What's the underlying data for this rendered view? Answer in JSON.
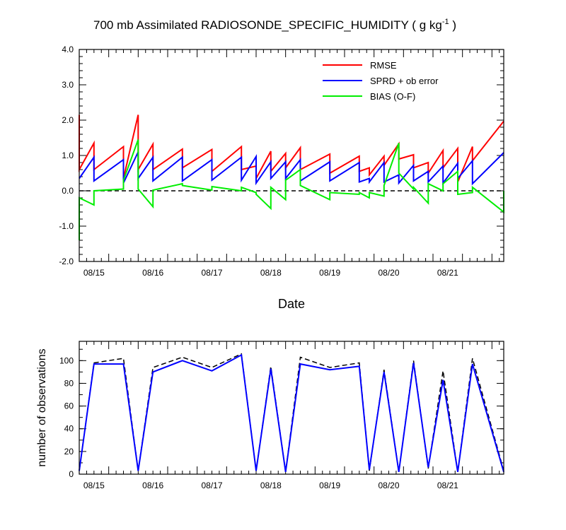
{
  "figure": {
    "title_main": "700 mb Assimilated RADIOSONDE_SPECIFIC_HUMIDITY ( g kg",
    "title_sup": "-1",
    "title_end": " )"
  },
  "chart_data": [
    {
      "type": "line",
      "xlabel": "Date",
      "ylabel": "",
      "ylim": [
        -2.0,
        4.0
      ],
      "xlim": [
        0.0,
        7.2
      ],
      "yticks": [
        "-2.0",
        "-1.0",
        "0.0",
        "1.0",
        "2.0",
        "3.0",
        "4.0"
      ],
      "xtick_positions": [
        0.25,
        1.25,
        2.25,
        3.25,
        4.25,
        5.25,
        6.25
      ],
      "xticks": [
        "08/15",
        "08/16",
        "08/17",
        "08/18",
        "08/19",
        "08/20",
        "08/21"
      ],
      "legend_position": "top-right",
      "reference_line": {
        "y": 0.0,
        "style": "dashed"
      },
      "series": [
        {
          "name": "RMSE",
          "color": "#ff0000",
          "x": [
            0.0,
            0.0,
            0.25,
            0.25,
            0.75,
            0.75,
            1.0,
            1.0,
            1.25,
            1.25,
            1.75,
            1.75,
            2.25,
            2.25,
            2.75,
            2.75,
            3.0,
            3.0,
            3.25,
            3.25,
            3.5,
            3.5,
            3.75,
            3.75,
            4.25,
            4.25,
            4.75,
            4.75,
            4.92,
            4.92,
            5.17,
            5.17,
            5.42,
            5.42,
            5.67,
            5.67,
            5.92,
            5.92,
            6.17,
            6.17,
            6.42,
            6.42,
            6.67,
            6.67,
            7.2
          ],
          "y": [
            2.15,
            0.6,
            1.35,
            0.6,
            1.25,
            0.35,
            2.15,
            0.6,
            1.32,
            0.6,
            1.18,
            0.65,
            1.17,
            0.55,
            1.25,
            0.6,
            0.7,
            0.35,
            1.12,
            0.55,
            1.06,
            0.65,
            1.22,
            0.6,
            1.04,
            0.5,
            0.98,
            0.55,
            0.65,
            0.45,
            0.98,
            0.72,
            1.33,
            0.9,
            1.02,
            0.65,
            0.8,
            0.5,
            1.14,
            0.65,
            1.2,
            0.25,
            1.25,
            0.85,
            1.97
          ]
        },
        {
          "name": "SPRD + ob error",
          "color": "#0000ff",
          "x": [
            0.0,
            0.25,
            0.25,
            0.75,
            0.75,
            1.0,
            1.0,
            1.25,
            1.25,
            1.75,
            1.75,
            2.25,
            2.25,
            2.75,
            2.75,
            3.0,
            3.0,
            3.25,
            3.25,
            3.5,
            3.5,
            3.75,
            3.75,
            4.25,
            4.25,
            4.75,
            4.75,
            4.92,
            4.92,
            5.17,
            5.17,
            5.42,
            5.42,
            5.67,
            5.67,
            5.92,
            5.92,
            6.17,
            6.17,
            6.42,
            6.42,
            6.67,
            6.67,
            7.2
          ],
          "y": [
            0.35,
            0.95,
            0.28,
            0.88,
            0.22,
            1.1,
            0.35,
            0.95,
            0.28,
            0.95,
            0.28,
            0.88,
            0.3,
            0.95,
            0.3,
            0.97,
            0.22,
            0.82,
            0.35,
            0.82,
            0.35,
            0.88,
            0.28,
            0.82,
            0.28,
            0.8,
            0.25,
            0.35,
            0.25,
            0.8,
            0.25,
            0.45,
            0.22,
            0.72,
            0.28,
            0.55,
            0.25,
            0.7,
            0.22,
            0.78,
            0.35,
            0.85,
            0.2,
            1.08
          ]
        },
        {
          "name": "BIAS (O-F)",
          "color": "#00ee00",
          "x": [
            0.0,
            0.0,
            0.25,
            0.25,
            0.75,
            0.75,
            1.0,
            1.0,
            1.25,
            1.25,
            1.75,
            1.75,
            2.25,
            2.25,
            2.75,
            2.75,
            3.0,
            3.0,
            3.25,
            3.25,
            3.5,
            3.5,
            3.75,
            3.75,
            4.25,
            4.25,
            4.75,
            4.75,
            4.92,
            4.92,
            5.17,
            5.17,
            5.42,
            5.42,
            5.67,
            5.67,
            5.92,
            5.92,
            6.17,
            6.17,
            6.42,
            6.42,
            6.67,
            6.67,
            7.2,
            7.2
          ],
          "y": [
            -1.4,
            -0.2,
            -0.4,
            0.0,
            0.05,
            0.3,
            1.45,
            0.05,
            -0.45,
            0.02,
            0.2,
            0.15,
            0.02,
            0.12,
            0.0,
            0.1,
            -0.05,
            -0.1,
            -0.5,
            0.1,
            -0.25,
            0.3,
            0.6,
            0.15,
            -0.25,
            -0.05,
            -0.1,
            -0.05,
            -0.2,
            -0.05,
            -0.15,
            0.15,
            1.35,
            0.5,
            0.05,
            0.1,
            -0.35,
            0.2,
            0.0,
            0.2,
            0.55,
            -0.1,
            -0.05,
            0.1,
            -0.6,
            0.0
          ]
        }
      ]
    },
    {
      "type": "line",
      "xlabel": "",
      "ylabel": "number of observations",
      "ylim": [
        0,
        117
      ],
      "xlim": [
        0.0,
        7.2
      ],
      "yticks": [
        "0",
        "20",
        "40",
        "60",
        "80",
        "100"
      ],
      "xtick_positions": [
        0.25,
        1.25,
        2.25,
        3.25,
        4.25,
        5.25,
        6.25
      ],
      "xticks": [
        "08/15",
        "08/16",
        "08/17",
        "08/18",
        "08/19",
        "08/20",
        "08/21"
      ],
      "series": [
        {
          "style": "dashed",
          "color": "#000000",
          "x": [
            0.0,
            0.25,
            0.75,
            1.0,
            1.25,
            1.75,
            2.25,
            2.75,
            3.0,
            3.25,
            3.5,
            3.75,
            4.25,
            4.75,
            4.92,
            5.17,
            5.42,
            5.67,
            5.92,
            6.17,
            6.42,
            6.67,
            7.2
          ],
          "y": [
            3,
            98,
            102,
            3,
            94,
            103,
            94,
            106,
            3,
            95,
            2,
            103,
            94,
            98,
            3,
            92,
            2,
            100,
            5,
            91,
            2,
            102,
            3
          ]
        },
        {
          "style": "solid",
          "color": "#0000ff",
          "x": [
            0.0,
            0.25,
            0.75,
            1.0,
            1.25,
            1.75,
            2.25,
            2.75,
            3.0,
            3.25,
            3.5,
            3.75,
            4.25,
            4.75,
            4.92,
            5.17,
            5.42,
            5.67,
            5.92,
            6.17,
            6.42,
            6.67,
            7.2
          ],
          "y": [
            3,
            97,
            97,
            3,
            90,
            100,
            91,
            105,
            3,
            93,
            2,
            97,
            92,
            95,
            4,
            90,
            2,
            98,
            6,
            83,
            2,
            97,
            2
          ]
        }
      ]
    }
  ]
}
